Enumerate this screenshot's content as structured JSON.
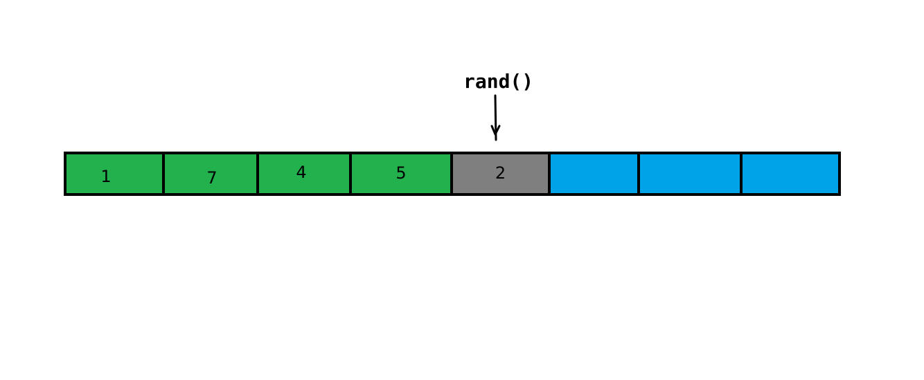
{
  "diagram": {
    "pointer_label": "rand()",
    "cells": [
      {
        "value": "1",
        "state": "filled"
      },
      {
        "value": "7",
        "state": "filled"
      },
      {
        "value": "4",
        "state": "filled"
      },
      {
        "value": "5",
        "state": "filled"
      },
      {
        "value": "2",
        "state": "selected"
      },
      {
        "value": "",
        "state": "empty"
      },
      {
        "value": "",
        "state": "empty"
      },
      {
        "value": "",
        "state": "empty"
      }
    ],
    "colors": {
      "filled": "#22b14c",
      "selected": "#7f7f7f",
      "empty": "#00a2e8",
      "border": "#000000"
    }
  }
}
